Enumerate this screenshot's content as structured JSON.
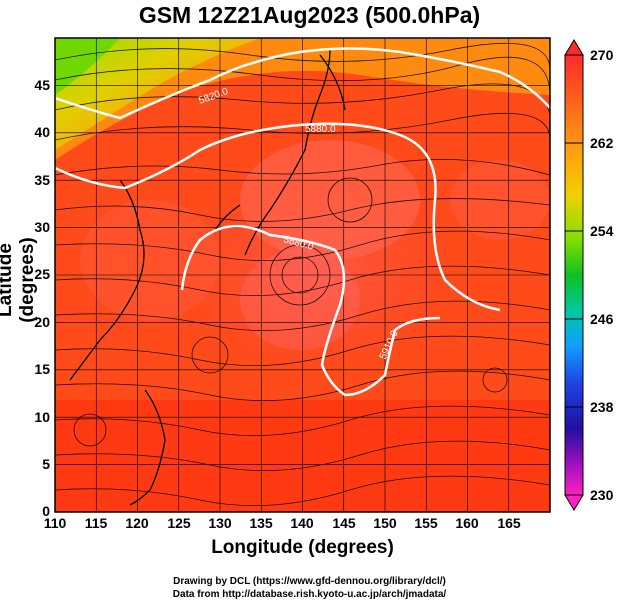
{
  "title": "GSM 12Z21Aug2023 (500.0hPa)",
  "axes": {
    "xlabel": "Longitude (degrees)",
    "ylabel": "Latitude  (degrees)",
    "xticks": [
      "110",
      "115",
      "120",
      "125",
      "130",
      "135",
      "140",
      "145",
      "150",
      "155",
      "160",
      "165"
    ],
    "yticks": [
      "0",
      "5",
      "10",
      "15",
      "20",
      "25",
      "30",
      "35",
      "40",
      "45"
    ]
  },
  "colorbar": {
    "labels": [
      "270",
      "262",
      "254",
      "246",
      "238",
      "230"
    ]
  },
  "contours": {
    "label_a": "5820.0",
    "label_b": "5880.0",
    "label_c": "5880.0",
    "label_d": "5910.0"
  },
  "footer": {
    "line1": "Drawing by DCL (https://www.gfd-dennou.org/library/dcl/)",
    "line2": "Data from http://database.rish.kyoto-u.ac.jp/arch/jmadata/"
  },
  "chart_data": {
    "type": "heatmap",
    "title": "GSM 12Z21Aug2023 (500.0hPa)",
    "xlabel": "Longitude (degrees)",
    "ylabel": "Latitude  (degrees)",
    "xlim": [
      110,
      170
    ],
    "ylim": [
      0,
      50
    ],
    "colorbar_range": [
      230,
      270
    ],
    "colorbar_ticks": [
      230,
      238,
      246,
      254,
      262,
      270
    ],
    "contour_values": [
      5820.0,
      5880.0,
      5910.0
    ],
    "grid": true,
    "overlay": "streamlines"
  }
}
